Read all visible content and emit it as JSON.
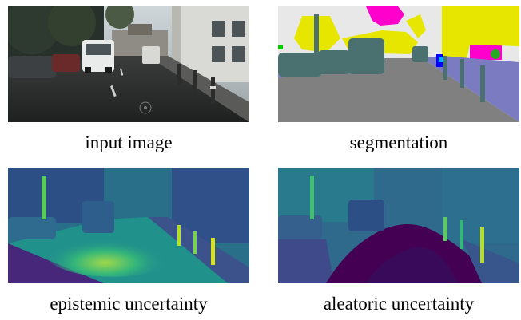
{
  "figure": {
    "panels": [
      {
        "id": "input",
        "caption": "input image"
      },
      {
        "id": "segmentation",
        "caption": "segmentation"
      },
      {
        "id": "epistemic",
        "caption": "epistemic uncertainty"
      },
      {
        "id": "aleatoric",
        "caption": "aleatoric uncertainty"
      }
    ]
  },
  "colors": {
    "seg_road": "#808080",
    "seg_sidewalk": "#7b7bc2",
    "seg_building": "#e8e8e8",
    "seg_vegetation": "#e6e600",
    "seg_sky": "#ff00cc",
    "seg_car": "#4a7070",
    "seg_sign": "#00aaff",
    "viridis_low": "#440154",
    "viridis_mid": "#21918c",
    "viridis_high": "#fde725"
  }
}
